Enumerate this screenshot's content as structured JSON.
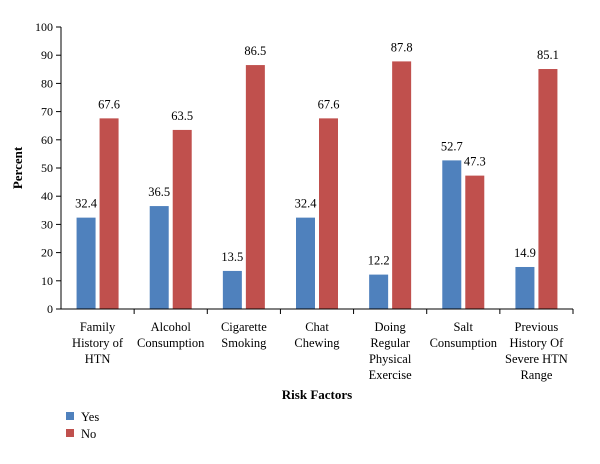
{
  "chart_data": {
    "type": "bar",
    "categories": [
      [
        "Family",
        "History of",
        "HTN"
      ],
      [
        "Alcohol",
        "Consumption"
      ],
      [
        "Cigarette",
        "Smoking"
      ],
      [
        "Chat",
        "Chewing"
      ],
      [
        "Doing",
        "Regular",
        "Physical",
        "Exercise"
      ],
      [
        "Salt",
        "Consumption"
      ],
      [
        "Previous",
        "History Of",
        "Severe HTN",
        "Range"
      ]
    ],
    "series": [
      {
        "name": "Yes",
        "color": "#4F81BD",
        "values": [
          32.4,
          36.5,
          13.5,
          32.4,
          12.2,
          52.7,
          14.9
        ]
      },
      {
        "name": "No",
        "color": "#C0504D",
        "values": [
          67.6,
          63.5,
          86.5,
          67.6,
          87.8,
          47.3,
          85.1
        ]
      }
    ],
    "ylim": [
      0,
      100
    ],
    "yticks": [
      0,
      10,
      20,
      30,
      40,
      50,
      60,
      70,
      80,
      90,
      100
    ],
    "xlabel": "Risk Factors",
    "ylabel": "Percent",
    "grid": false,
    "legend_position": "bottom-left",
    "data_labels": true
  }
}
